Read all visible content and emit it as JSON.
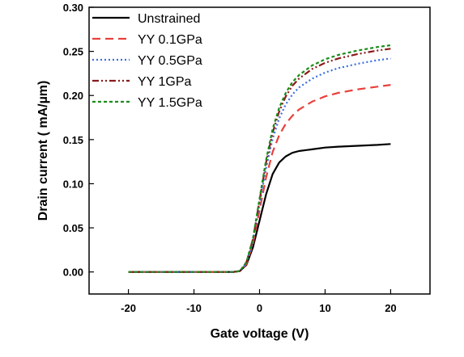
{
  "chart_data": {
    "type": "line",
    "title": "",
    "xlabel": "Gate voltage (V)",
    "ylabel": "Drain current ( mA/µm)",
    "xlim": [
      -26,
      26
    ],
    "ylim": [
      -0.025,
      0.3
    ],
    "xticks": [
      -20,
      -10,
      0,
      10,
      20
    ],
    "xtick_labels": [
      "-20",
      "-10",
      "0",
      "10",
      "20"
    ],
    "yticks": [
      0.0,
      0.05,
      0.1,
      0.15,
      0.2,
      0.25,
      0.3
    ],
    "ytick_labels": [
      "0.00",
      "0.05",
      "0.10",
      "0.15",
      "0.20",
      "0.25",
      "0.30"
    ],
    "grid": false,
    "legend_position": "top-left",
    "x": [
      -20,
      -10,
      -4,
      -3,
      -2,
      -1,
      0,
      1,
      2,
      3,
      4,
      5,
      6,
      8,
      10,
      12,
      15,
      18,
      20
    ],
    "series": [
      {
        "name": "Unstrained",
        "color": "#000000",
        "dash": "solid",
        "values": [
          0,
          0,
          0,
          0.001,
          0.008,
          0.028,
          0.058,
          0.088,
          0.111,
          0.124,
          0.131,
          0.135,
          0.137,
          0.139,
          0.141,
          0.142,
          0.143,
          0.144,
          0.145
        ]
      },
      {
        "name": "YY 0.1GPa",
        "color": "#e8413c",
        "dash": "dash",
        "values": [
          0,
          0,
          0,
          0.001,
          0.009,
          0.032,
          0.07,
          0.107,
          0.136,
          0.155,
          0.168,
          0.177,
          0.184,
          0.193,
          0.199,
          0.203,
          0.207,
          0.21,
          0.212
        ]
      },
      {
        "name": "YY 0.5GPa",
        "color": "#3a6fe0",
        "dash": "dot",
        "values": [
          0,
          0,
          0,
          0.001,
          0.01,
          0.035,
          0.077,
          0.118,
          0.151,
          0.174,
          0.19,
          0.201,
          0.209,
          0.219,
          0.226,
          0.231,
          0.236,
          0.24,
          0.242
        ]
      },
      {
        "name": "YY 1GPa",
        "color": "#8b1a1a",
        "dash": "dashdotdot",
        "values": [
          0,
          0,
          0,
          0.001,
          0.011,
          0.037,
          0.081,
          0.124,
          0.158,
          0.182,
          0.199,
          0.211,
          0.219,
          0.23,
          0.237,
          0.242,
          0.247,
          0.251,
          0.253
        ]
      },
      {
        "name": "YY 1.5GPa",
        "color": "#1a8c1a",
        "dash": "shortdash",
        "values": [
          0,
          0,
          0,
          0.001,
          0.011,
          0.038,
          0.083,
          0.127,
          0.162,
          0.186,
          0.203,
          0.215,
          0.223,
          0.234,
          0.241,
          0.246,
          0.251,
          0.255,
          0.257
        ]
      }
    ]
  }
}
